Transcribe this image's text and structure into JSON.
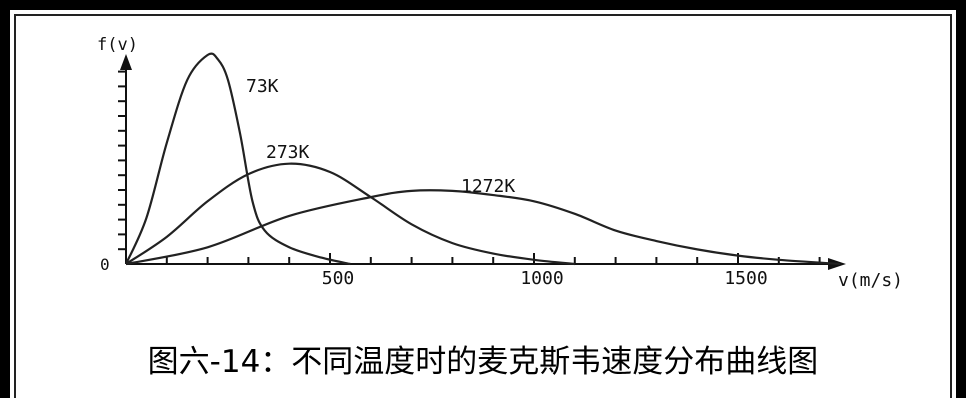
{
  "chart_data": {
    "type": "line",
    "ylabel": "f(v)",
    "xlabel": "v(m/s)",
    "origin_label": "0",
    "xlim": [
      0,
      1750
    ],
    "ylim": [
      0,
      1
    ],
    "x_ticks": [
      {
        "value": 500,
        "label": "500"
      },
      {
        "value": 1000,
        "label": "1000"
      },
      {
        "value": 1500,
        "label": "1500"
      }
    ],
    "series": [
      {
        "name": "73K",
        "points": [
          [
            0,
            0
          ],
          [
            50,
            0.22
          ],
          [
            100,
            0.58
          ],
          [
            150,
            0.88
          ],
          [
            200,
            1.0
          ],
          [
            225,
            0.98
          ],
          [
            250,
            0.88
          ],
          [
            280,
            0.62
          ],
          [
            310,
            0.3
          ],
          [
            340,
            0.16
          ],
          [
            400,
            0.08
          ],
          [
            480,
            0.03
          ],
          [
            550,
            0.0
          ]
        ]
      },
      {
        "name": "273K",
        "points": [
          [
            0,
            0
          ],
          [
            100,
            0.13
          ],
          [
            200,
            0.3
          ],
          [
            300,
            0.43
          ],
          [
            400,
            0.48
          ],
          [
            500,
            0.44
          ],
          [
            600,
            0.32
          ],
          [
            700,
            0.19
          ],
          [
            800,
            0.1
          ],
          [
            900,
            0.05
          ],
          [
            1000,
            0.02
          ],
          [
            1100,
            0.0
          ]
        ]
      },
      {
        "name": "1272K",
        "points": [
          [
            0,
            0
          ],
          [
            200,
            0.08
          ],
          [
            400,
            0.23
          ],
          [
            600,
            0.32
          ],
          [
            700,
            0.35
          ],
          [
            800,
            0.35
          ],
          [
            900,
            0.33
          ],
          [
            1000,
            0.3
          ],
          [
            1100,
            0.24
          ],
          [
            1200,
            0.16
          ],
          [
            1300,
            0.11
          ],
          [
            1400,
            0.07
          ],
          [
            1500,
            0.04
          ],
          [
            1600,
            0.02
          ],
          [
            1750,
            0.0
          ]
        ]
      }
    ]
  },
  "caption": "图六-14：不同温度时的麦克斯韦速度分布曲线图"
}
